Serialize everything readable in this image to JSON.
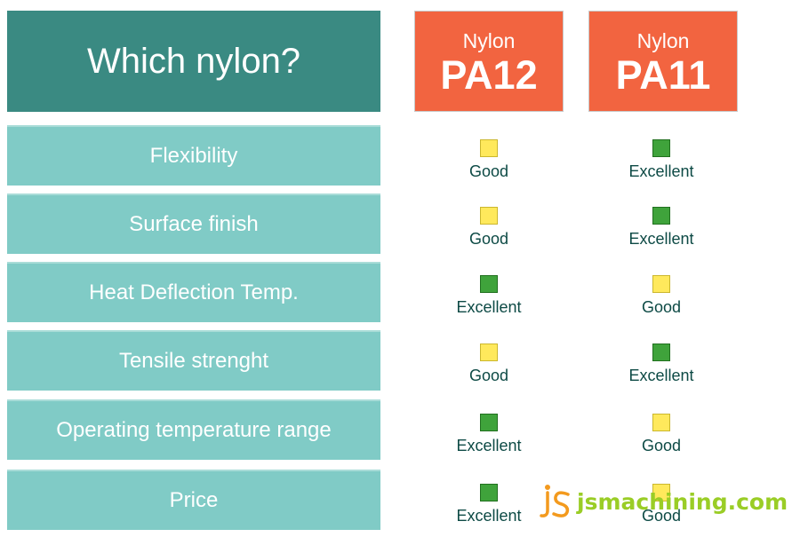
{
  "title": "Which nylon?",
  "columns": [
    {
      "small": "Nylon",
      "big": "PA12"
    },
    {
      "small": "Nylon",
      "big": "PA11"
    }
  ],
  "rows": [
    {
      "label": "Flexibility",
      "pa12": "Good",
      "pa11": "Excellent"
    },
    {
      "label": "Surface finish",
      "pa12": "Good",
      "pa11": "Excellent"
    },
    {
      "label": "Heat Deflection Temp.",
      "pa12": "Excellent",
      "pa11": "Good"
    },
    {
      "label": "Tensile strenght",
      "pa12": "Good",
      "pa11": "Excellent"
    },
    {
      "label": "Operating temperature range",
      "pa12": "Excellent",
      "pa11": "Good"
    },
    {
      "label": "Price",
      "pa12": "Excellent",
      "pa11": "Good"
    }
  ],
  "legend_colors": {
    "Good": "#ffe95c",
    "Excellent": "#3fa33b"
  },
  "watermark": {
    "logo": "JS",
    "text": "jsmachining.com"
  }
}
